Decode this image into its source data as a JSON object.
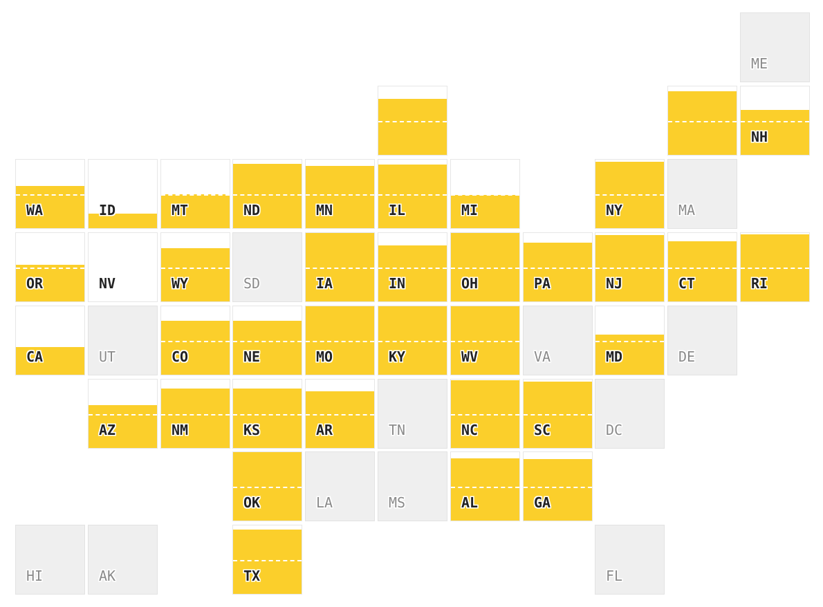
{
  "colors": {
    "fill": "#fbcf2b",
    "no_data": "#efefef",
    "empty": "#ffffff",
    "reference_line": "#ffffff"
  },
  "reference_line_level": 0.5,
  "states": [
    {
      "code": "ME",
      "label": "ME",
      "value": null
    },
    {
      "code": "WI",
      "label": "",
      "value": 0.82
    },
    {
      "code": "VT",
      "label": "",
      "value": 0.93
    },
    {
      "code": "NH",
      "label": "NH",
      "value": 0.66
    },
    {
      "code": "WA",
      "label": "WA",
      "value": 0.62
    },
    {
      "code": "ID",
      "label": "ID",
      "value": 0.21
    },
    {
      "code": "MT",
      "label": "MT",
      "value": 0.5
    },
    {
      "code": "ND",
      "label": "ND",
      "value": 0.94
    },
    {
      "code": "MN",
      "label": "MN",
      "value": 0.91
    },
    {
      "code": "IL",
      "label": "IL",
      "value": 0.93
    },
    {
      "code": "MI",
      "label": "MI",
      "value": 0.48
    },
    {
      "code": "NY",
      "label": "NY",
      "value": 0.97
    },
    {
      "code": "MA",
      "label": "MA",
      "value": null
    },
    {
      "code": "OR",
      "label": "OR",
      "value": 0.54
    },
    {
      "code": "NV",
      "label": "NV",
      "value": 0
    },
    {
      "code": "WY",
      "label": "WY",
      "value": 0.78
    },
    {
      "code": "SD",
      "label": "SD",
      "value": null
    },
    {
      "code": "IA",
      "label": "IA",
      "value": 1.0
    },
    {
      "code": "IN",
      "label": "IN",
      "value": 0.82
    },
    {
      "code": "OH",
      "label": "OH",
      "value": 1.0
    },
    {
      "code": "PA",
      "label": "PA",
      "value": 0.86
    },
    {
      "code": "NJ",
      "label": "NJ",
      "value": 0.97
    },
    {
      "code": "CT",
      "label": "CT",
      "value": 0.88
    },
    {
      "code": "RI",
      "label": "RI",
      "value": 0.98
    },
    {
      "code": "CA",
      "label": "CA",
      "value": 0.4
    },
    {
      "code": "UT",
      "label": "UT",
      "value": null
    },
    {
      "code": "CO",
      "label": "CO",
      "value": 0.79
    },
    {
      "code": "NE",
      "label": "NE",
      "value": 0.79
    },
    {
      "code": "MO",
      "label": "MO",
      "value": 1.0
    },
    {
      "code": "KY",
      "label": "KY",
      "value": 1.0
    },
    {
      "code": "WV",
      "label": "WV",
      "value": 1.0
    },
    {
      "code": "VA",
      "label": "VA",
      "value": null
    },
    {
      "code": "MD",
      "label": "MD",
      "value": 0.59
    },
    {
      "code": "DE",
      "label": "DE",
      "value": null
    },
    {
      "code": "AZ",
      "label": "AZ",
      "value": 0.63
    },
    {
      "code": "NM",
      "label": "NM",
      "value": 0.87
    },
    {
      "code": "KS",
      "label": "KS",
      "value": 0.87
    },
    {
      "code": "AR",
      "label": "AR",
      "value": 0.83
    },
    {
      "code": "TN",
      "label": "TN",
      "value": null
    },
    {
      "code": "NC",
      "label": "NC",
      "value": 0.99
    },
    {
      "code": "SC",
      "label": "SC",
      "value": 0.97
    },
    {
      "code": "DC",
      "label": "DC",
      "value": null
    },
    {
      "code": "OK",
      "label": "OK",
      "value": 1.0
    },
    {
      "code": "LA",
      "label": "LA",
      "value": null
    },
    {
      "code": "MS",
      "label": "MS",
      "value": null
    },
    {
      "code": "AL",
      "label": "AL",
      "value": 0.91
    },
    {
      "code": "GA",
      "label": "GA",
      "value": 0.9
    },
    {
      "code": "HI",
      "label": "HI",
      "value": null
    },
    {
      "code": "AK",
      "label": "AK",
      "value": null
    },
    {
      "code": "TX",
      "label": "TX",
      "value": 0.94
    },
    {
      "code": "FL",
      "label": "FL",
      "value": null
    }
  ]
}
